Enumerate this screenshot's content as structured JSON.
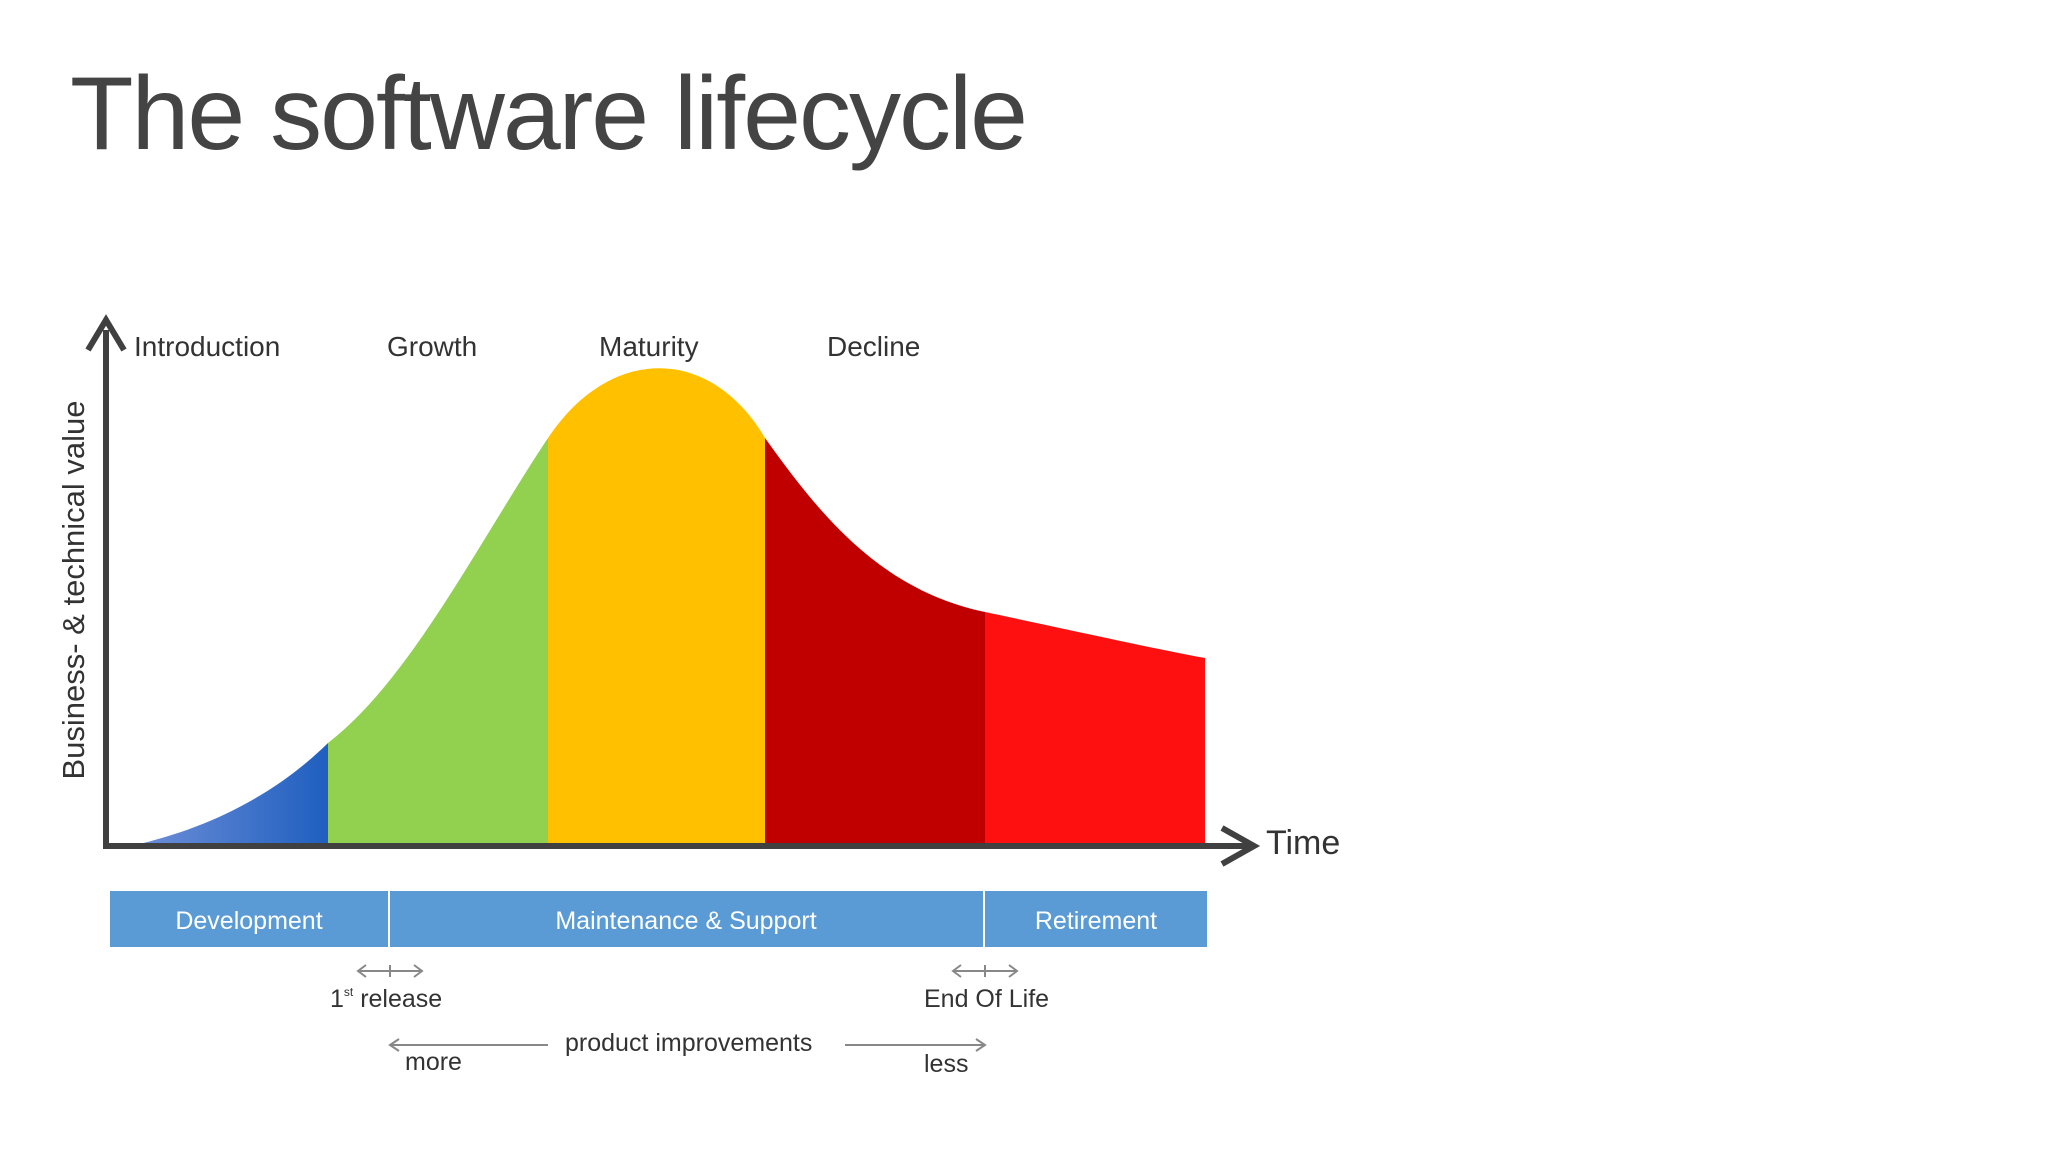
{
  "title": "The software lifecycle",
  "y_axis_label": "Business- & technical value",
  "x_axis_label": "Time",
  "phases": [
    "Introduction",
    "Growth",
    "Maturity",
    "Decline"
  ],
  "stages": [
    "Development",
    "Maintenance & Support",
    "Retirement"
  ],
  "first_release": {
    "number": "1",
    "superscript": "st",
    "text": " release"
  },
  "end_of_life": "End Of Life",
  "improvements": {
    "label": "product improvements",
    "more": "more",
    "less": "less"
  },
  "colors": {
    "introduction": "#1f5fbf",
    "growth": "#92d050",
    "maturity": "#ffc000",
    "decline": "#c00000",
    "retirement": "#ff1010",
    "stage_bar": "#5b9bd5",
    "axis": "#404040"
  }
}
